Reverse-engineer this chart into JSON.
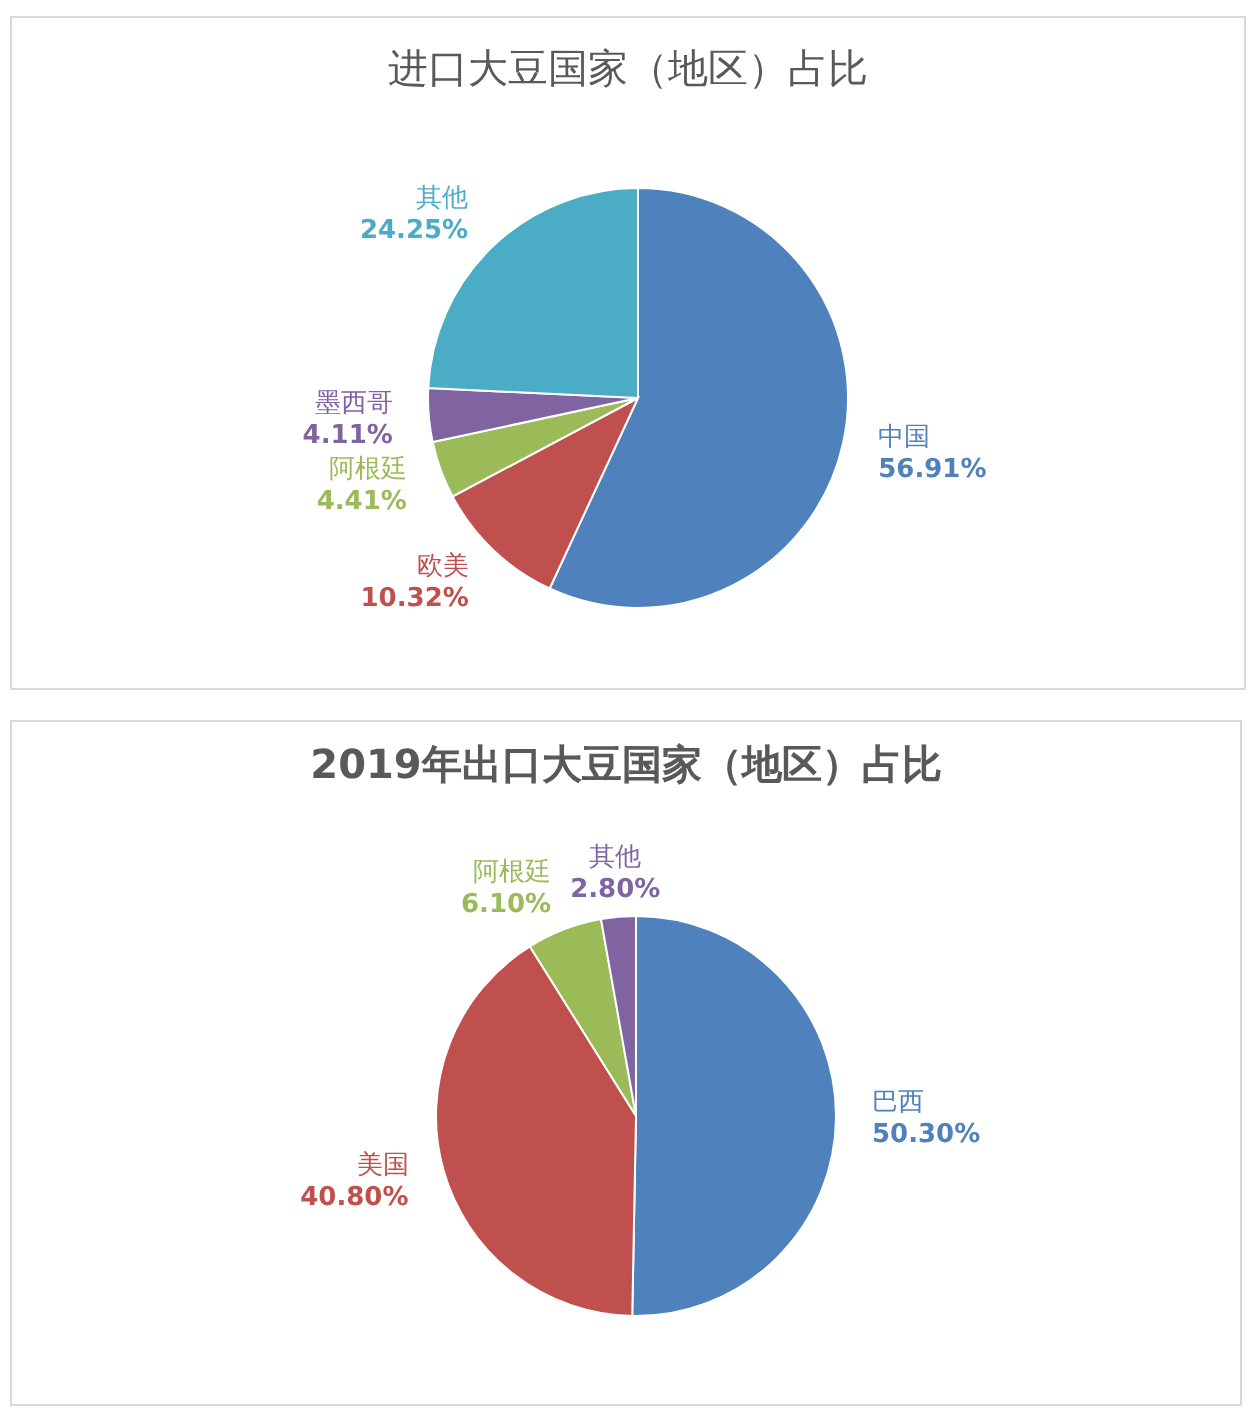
{
  "chart_data": [
    {
      "type": "pie",
      "title": "进口大豆国家（地区）占比",
      "categories": [
        "中国",
        "欧美",
        "阿根廷",
        "墨西哥",
        "其他"
      ],
      "values": [
        56.91,
        10.32,
        4.41,
        4.11,
        24.25
      ],
      "colors": [
        "#4f81bd",
        "#c0504d",
        "#9bbb59",
        "#8064a2",
        "#4bacc6"
      ],
      "value_labels": [
        "56.91%",
        "10.32%",
        "4.41%",
        "4.11%",
        "24.25%"
      ]
    },
    {
      "type": "pie",
      "title": "2019年出口大豆国家（地区）占比",
      "categories": [
        "巴西",
        "美国",
        "阿根廷",
        "其他"
      ],
      "values": [
        50.3,
        40.8,
        6.1,
        2.8
      ],
      "colors": [
        "#4f81bd",
        "#c0504d",
        "#9bbb59",
        "#8064a2"
      ],
      "value_labels": [
        "50.30%",
        "40.80%",
        "6.10%",
        "2.80%"
      ]
    }
  ]
}
